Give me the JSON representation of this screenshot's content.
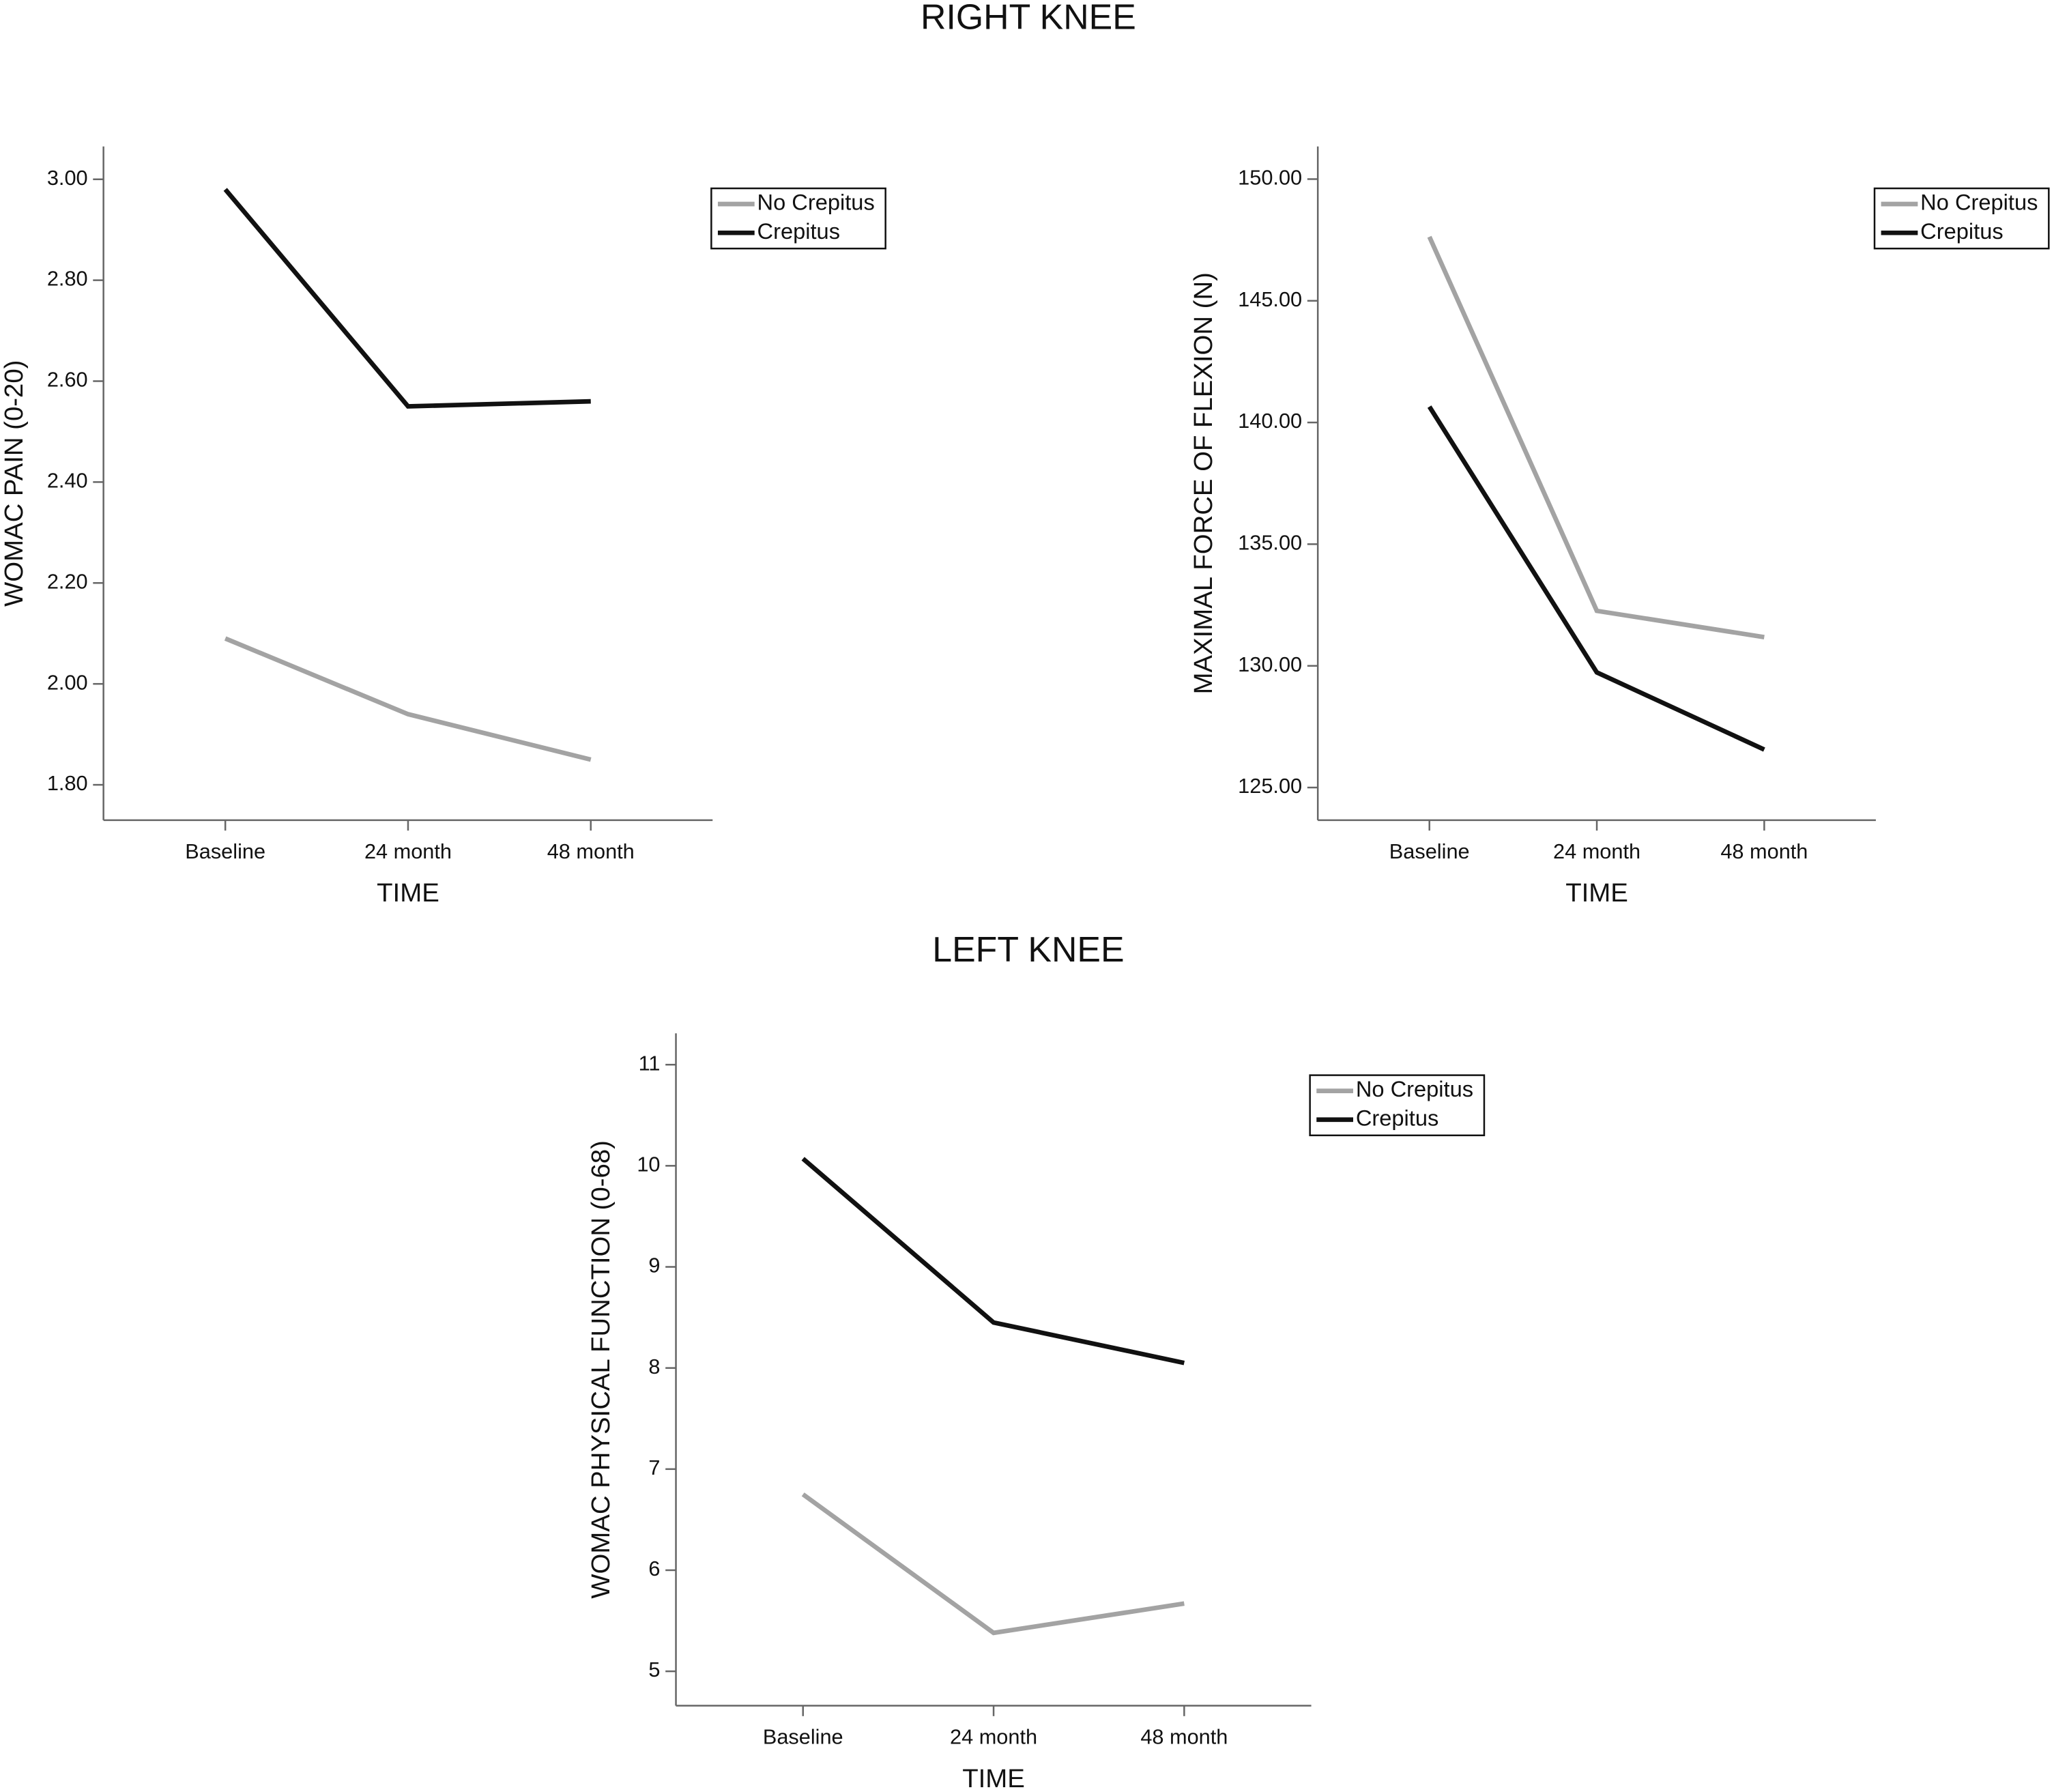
{
  "headings": [
    "RIGHT KNEE",
    "LEFT KNEE"
  ],
  "chart_data": [
    {
      "type": "line",
      "ylabel": "WOMAC PAIN (0-20)",
      "xlabel": "TIME",
      "categories": [
        "Baseline",
        "24 month",
        "48 month"
      ],
      "series": [
        {
          "name": "No Crepitus",
          "color": "#a3a3a3",
          "values": [
            2.09,
            1.94,
            1.85
          ]
        },
        {
          "name": "Crepitus",
          "color": "#111111",
          "values": [
            2.98,
            2.55,
            2.56
          ]
        }
      ],
      "ylim": [
        1.73,
        3.065
      ],
      "yticks": [
        {
          "value": 1.8,
          "label": "1.80"
        },
        {
          "value": 2.0,
          "label": "2.00"
        },
        {
          "value": 2.2,
          "label": "2.20"
        },
        {
          "value": 2.4,
          "label": "2.40"
        },
        {
          "value": 2.6,
          "label": "2.60"
        },
        {
          "value": 2.8,
          "label": "2.80"
        },
        {
          "value": 3.0,
          "label": "3.00"
        }
      ],
      "legend": "upper right",
      "grid": false
    },
    {
      "type": "line",
      "ylabel": "MAXIMAL FORCE OF FLEXION (N)",
      "xlabel": "TIME",
      "categories": [
        "Baseline",
        "24 month",
        "48 month"
      ],
      "series": [
        {
          "name": "No Crepitus",
          "color": "#a3a3a3",
          "values": [
            147.63,
            132.26,
            131.18
          ]
        },
        {
          "name": "Crepitus",
          "color": "#111111",
          "values": [
            140.65,
            129.73,
            126.56
          ]
        }
      ],
      "ylim": [
        123.66,
        151.34
      ],
      "yticks": [
        {
          "value": 125,
          "label": "125.00"
        },
        {
          "value": 130,
          "label": "130.00"
        },
        {
          "value": 135,
          "label": "135.00"
        },
        {
          "value": 140,
          "label": "140.00"
        },
        {
          "value": 145,
          "label": "145.00"
        },
        {
          "value": 150,
          "label": "150.00"
        }
      ],
      "legend": "upper right",
      "grid": false
    },
    {
      "type": "line",
      "ylabel": "WOMAC PHYSICAL FUNCTION (0-68)",
      "xlabel": "TIME",
      "categories": [
        "Baseline",
        "24 month",
        "48 month"
      ],
      "series": [
        {
          "name": "No Crepitus",
          "color": "#a3a3a3",
          "values": [
            6.75,
            5.38,
            5.67
          ]
        },
        {
          "name": "Crepitus",
          "color": "#111111",
          "values": [
            10.07,
            8.45,
            8.05
          ]
        }
      ],
      "ylim": [
        4.66,
        11.31
      ],
      "yticks": [
        5,
        6,
        7,
        8,
        9,
        10,
        11
      ],
      "legend": "upper right",
      "grid": false
    }
  ]
}
